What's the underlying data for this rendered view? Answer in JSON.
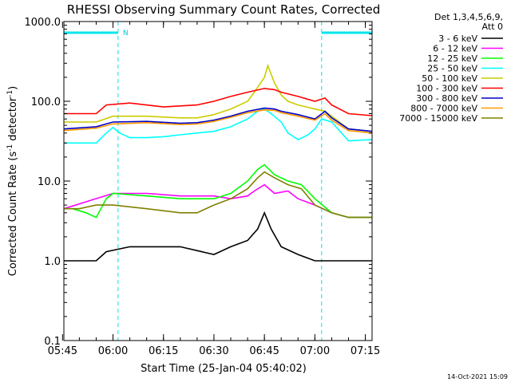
{
  "chart_data": {
    "type": "line",
    "title": "RHESSI Observing Summary Count Rates, Corrected",
    "xlabel": "Start Time (25-Jan-04 05:40:02)",
    "ylabel_main": "Corrected Count Rate (s",
    "ylabel_sup1": "-1",
    "ylabel_mid": " detector",
    "ylabel_sup2": "-1",
    "ylabel_end": ")",
    "y_scale": "log",
    "ylim": [
      0.1,
      1000.0
    ],
    "xlim_minutes": [
      5.4,
      97.0
    ],
    "x_tick_labels": [
      "05:45",
      "06:00",
      "06:15",
      "06:30",
      "06:45",
      "07:00",
      "07:15"
    ],
    "x_tick_minutes": [
      5,
      20,
      35,
      50,
      65,
      80,
      95
    ],
    "y_tick_labels": [
      "0.1",
      "1.0",
      "10.0",
      "100.0",
      "1000.0"
    ],
    "y_tick_values": [
      0.1,
      1,
      10,
      100,
      1000
    ],
    "legend_header": [
      "Det 1,3,4,5,6,9,",
      "Att 0"
    ],
    "legend_position": "right",
    "footer_date": "14-Oct-2021 15:09",
    "annotation_N": "N",
    "night_intervals_minutes": [
      [
        5.4,
        21.5
      ],
      [
        82.0,
        97.0
      ]
    ],
    "series": [
      {
        "name": "3 - 6 keV",
        "color": "#000000",
        "x": [
          5.4,
          15,
          18,
          25,
          40,
          50,
          55,
          60,
          63,
          65,
          67,
          70,
          75,
          80,
          85,
          90,
          97
        ],
        "y": [
          1.0,
          1.0,
          1.3,
          1.5,
          1.5,
          1.2,
          1.5,
          1.8,
          2.5,
          4.0,
          2.5,
          1.5,
          1.2,
          1.0,
          1.0,
          1.0,
          1.0
        ]
      },
      {
        "name": "6 - 12 keV",
        "color": "#ff00ff",
        "x": [
          5.4,
          20,
          30,
          40,
          50,
          55,
          60,
          62,
          65,
          68,
          72,
          75,
          80,
          85,
          90,
          97
        ],
        "y": [
          4.5,
          7.0,
          7.0,
          6.5,
          6.5,
          6.0,
          6.5,
          7.5,
          9.0,
          7.0,
          7.5,
          6.0,
          5.0,
          4.0,
          3.5,
          3.5
        ]
      },
      {
        "name": "12 - 25 keV",
        "color": "#00ff00",
        "x": [
          5.4,
          8,
          12,
          15,
          18,
          20,
          30,
          40,
          50,
          55,
          60,
          63,
          65,
          68,
          72,
          76,
          80,
          85,
          90,
          97
        ],
        "y": [
          4.5,
          4.5,
          4.0,
          3.5,
          6.0,
          7.0,
          6.5,
          6.0,
          6.0,
          7.0,
          10.0,
          14.0,
          16.0,
          12.0,
          10.0,
          9.0,
          6.0,
          4.0,
          3.5,
          3.5
        ]
      },
      {
        "name": "25 - 50 keV",
        "color": "#00ffff",
        "x": [
          5.4,
          10,
          15,
          18,
          20,
          22,
          25,
          30,
          35,
          40,
          45,
          50,
          55,
          60,
          63,
          65,
          67,
          70,
          72,
          75,
          78,
          80,
          82,
          85,
          90,
          97
        ],
        "y": [
          30,
          30,
          30,
          40,
          47,
          40,
          35,
          35,
          36,
          38,
          40,
          42,
          48,
          60,
          75,
          80,
          70,
          55,
          40,
          33,
          38,
          45,
          60,
          55,
          32,
          33
        ]
      },
      {
        "name": "50 - 100 keV",
        "color": "#cccc00",
        "x": [
          5.4,
          15,
          20,
          30,
          40,
          45,
          50,
          55,
          60,
          62,
          65,
          66,
          68,
          70,
          72,
          75,
          80,
          83,
          85,
          90,
          97
        ],
        "y": [
          55,
          55,
          65,
          65,
          62,
          62,
          68,
          80,
          100,
          130,
          200,
          280,
          170,
          120,
          100,
          90,
          80,
          75,
          65,
          45,
          42
        ]
      },
      {
        "name": "100 - 300 keV",
        "color": "#ff0000",
        "x": [
          5.4,
          15,
          18,
          25,
          35,
          45,
          50,
          55,
          60,
          65,
          68,
          70,
          75,
          80,
          83,
          85,
          90,
          97
        ],
        "y": [
          70,
          70,
          90,
          95,
          85,
          90,
          100,
          115,
          130,
          145,
          140,
          130,
          115,
          100,
          110,
          90,
          70,
          66
        ]
      },
      {
        "name": "300 - 800 keV",
        "color": "#0000cc",
        "x": [
          5.4,
          15,
          20,
          30,
          40,
          45,
          50,
          55,
          60,
          65,
          68,
          70,
          75,
          80,
          83,
          85,
          90,
          97
        ],
        "y": [
          45,
          48,
          55,
          56,
          53,
          54,
          58,
          65,
          75,
          82,
          80,
          75,
          68,
          60,
          75,
          62,
          45,
          42
        ]
      },
      {
        "name": "800 - 7000 keV",
        "color": "#ff9900",
        "x": [
          5.4,
          15,
          20,
          30,
          40,
          45,
          50,
          55,
          60,
          65,
          68,
          70,
          75,
          80,
          83,
          85,
          90,
          97
        ],
        "y": [
          43,
          46,
          52,
          54,
          51,
          52,
          56,
          63,
          72,
          78,
          77,
          72,
          65,
          58,
          70,
          58,
          43,
          40
        ]
      },
      {
        "name": "7000 - 15000 keV",
        "color": "#808000",
        "x": [
          5.4,
          10,
          15,
          20,
          30,
          40,
          45,
          50,
          55,
          60,
          63,
          65,
          68,
          72,
          76,
          80,
          85,
          90,
          97
        ],
        "y": [
          4.5,
          4.5,
          5.0,
          5.0,
          4.5,
          4.0,
          4.0,
          5.0,
          6.0,
          8.0,
          11.0,
          13.0,
          11.0,
          9.0,
          8.0,
          5.0,
          4.0,
          3.5,
          3.5
        ]
      }
    ]
  }
}
